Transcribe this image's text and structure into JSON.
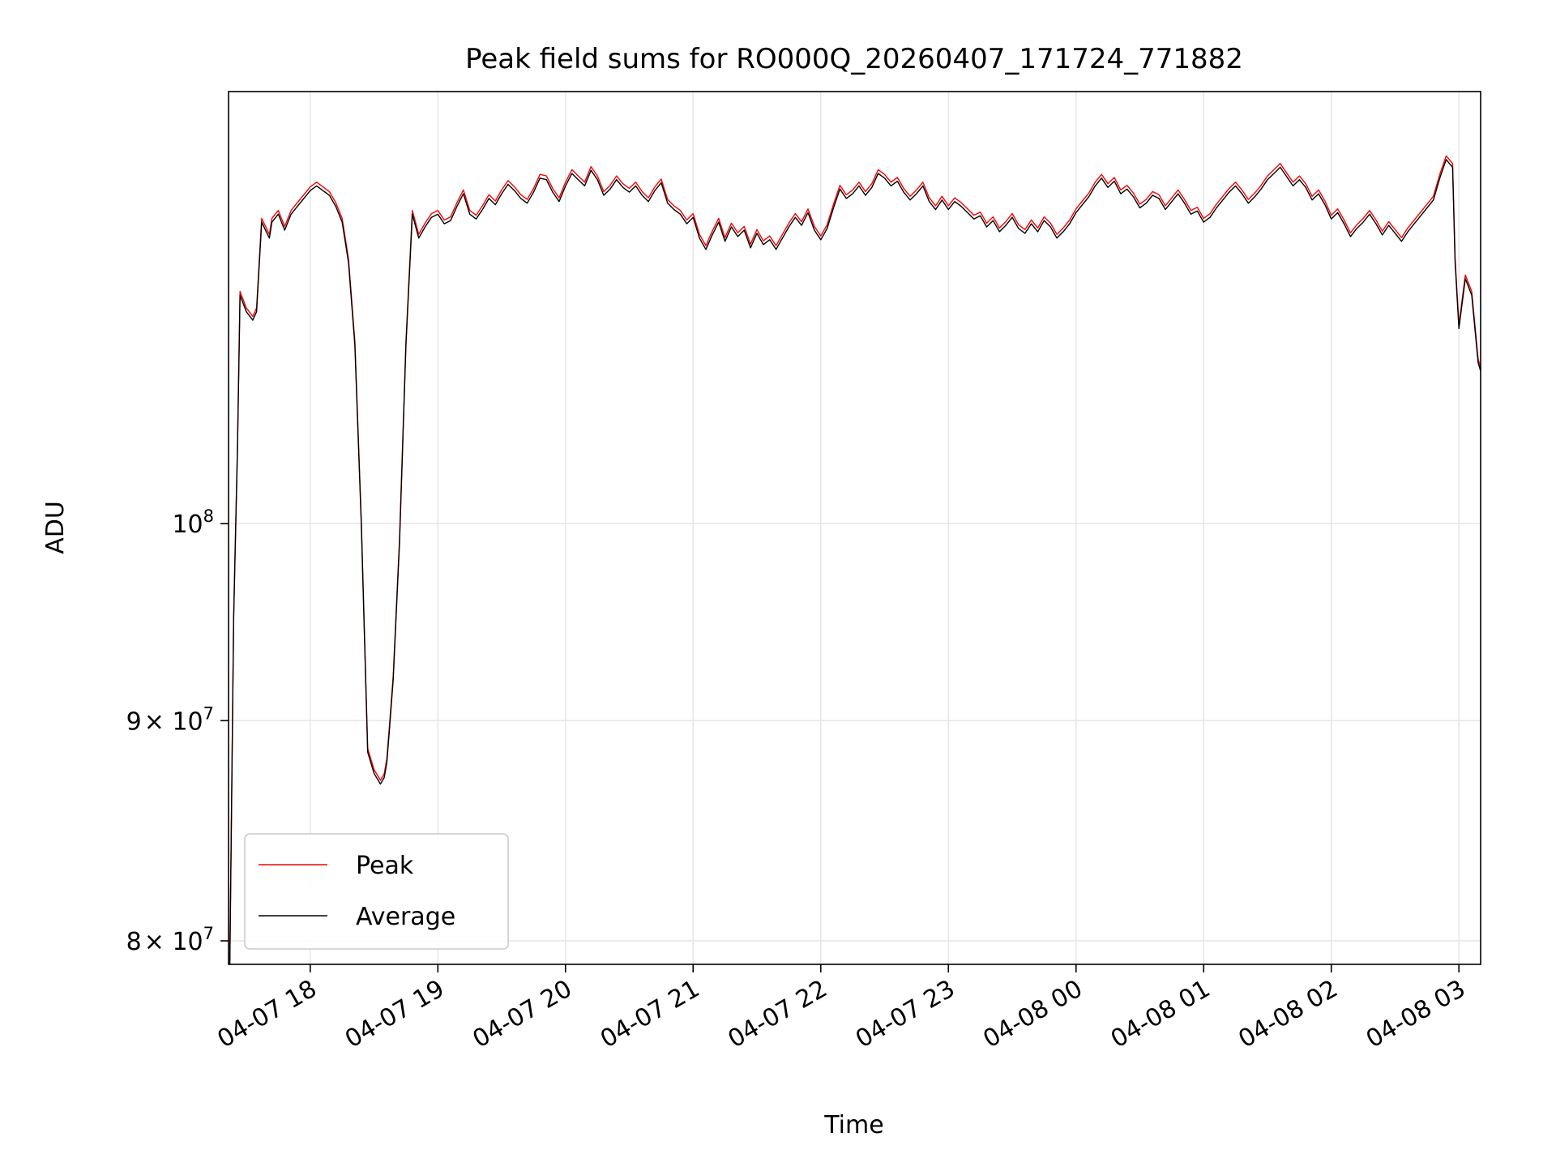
{
  "chart_data": {
    "type": "line",
    "title": "Peak field sums for RO000Q_20260407_171724_771882",
    "xlabel": "Time",
    "ylabel": "ADU",
    "yscale": "log",
    "xlim_hours": [
      17.36,
      27.17
    ],
    "ylim": [
      79000000,
      126000000
    ],
    "grid": true,
    "legend_position": "lower-left",
    "x_ticks": [
      {
        "hour": 18,
        "label": "04-07 18"
      },
      {
        "hour": 19,
        "label": "04-07 19"
      },
      {
        "hour": 20,
        "label": "04-07 20"
      },
      {
        "hour": 21,
        "label": "04-07 21"
      },
      {
        "hour": 22,
        "label": "04-07 22"
      },
      {
        "hour": 23,
        "label": "04-07 23"
      },
      {
        "hour": 24,
        "label": "04-08 00"
      },
      {
        "hour": 25,
        "label": "04-08 01"
      },
      {
        "hour": 26,
        "label": "04-08 02"
      },
      {
        "hour": 27,
        "label": "04-08 03"
      }
    ],
    "y_ticks": [
      {
        "value": 80000000,
        "mantissa": "8",
        "times": "×",
        "base": "10",
        "exp": "7"
      },
      {
        "value": 90000000,
        "mantissa": "9",
        "times": "×",
        "base": "10",
        "exp": "7"
      },
      {
        "value": 100000000,
        "mantissa": "",
        "times": "",
        "base": "10",
        "exp": "8"
      }
    ],
    "series": [
      {
        "name": "Peak",
        "color": "#ff0000",
        "offset_fraction": 0.002
      },
      {
        "name": "Average",
        "color": "#000000",
        "offset_fraction": 0.0
      }
    ],
    "x": [
      17.37,
      17.4,
      17.43,
      17.45,
      17.5,
      17.55,
      17.58,
      17.62,
      17.68,
      17.7,
      17.75,
      17.8,
      17.85,
      17.9,
      17.95,
      18.0,
      18.05,
      18.1,
      18.15,
      18.2,
      18.25,
      18.3,
      18.35,
      18.4,
      18.45,
      18.5,
      18.55,
      18.58,
      18.6,
      18.62,
      18.65,
      18.7,
      18.75,
      18.8,
      18.85,
      18.9,
      18.95,
      19.0,
      19.05,
      19.1,
      19.15,
      19.2,
      19.25,
      19.3,
      19.35,
      19.4,
      19.45,
      19.5,
      19.55,
      19.6,
      19.65,
      19.7,
      19.75,
      19.8,
      19.85,
      19.9,
      19.95,
      20.0,
      20.05,
      20.1,
      20.15,
      20.2,
      20.25,
      20.3,
      20.35,
      20.4,
      20.45,
      20.5,
      20.55,
      20.6,
      20.65,
      20.7,
      20.75,
      20.8,
      20.85,
      20.9,
      20.95,
      21.0,
      21.05,
      21.1,
      21.15,
      21.2,
      21.25,
      21.3,
      21.35,
      21.4,
      21.45,
      21.5,
      21.55,
      21.6,
      21.65,
      21.7,
      21.75,
      21.8,
      21.85,
      21.9,
      21.95,
      22.0,
      22.05,
      22.1,
      22.15,
      22.2,
      22.25,
      22.3,
      22.35,
      22.4,
      22.45,
      22.5,
      22.55,
      22.6,
      22.65,
      22.7,
      22.75,
      22.8,
      22.85,
      22.9,
      22.95,
      23.0,
      23.05,
      23.1,
      23.15,
      23.2,
      23.25,
      23.3,
      23.35,
      23.4,
      23.45,
      23.5,
      23.55,
      23.6,
      23.65,
      23.7,
      23.75,
      23.8,
      23.85,
      23.9,
      23.95,
      24.0,
      24.05,
      24.1,
      24.15,
      24.2,
      24.25,
      24.3,
      24.35,
      24.4,
      24.45,
      24.5,
      24.55,
      24.6,
      24.65,
      24.7,
      24.75,
      24.8,
      24.85,
      24.9,
      24.95,
      25.0,
      25.05,
      25.1,
      25.15,
      25.2,
      25.25,
      25.3,
      25.35,
      25.4,
      25.45,
      25.5,
      25.55,
      25.6,
      25.65,
      25.7,
      25.75,
      25.8,
      25.85,
      25.9,
      25.95,
      26.0,
      26.05,
      26.1,
      26.15,
      26.2,
      26.25,
      26.3,
      26.35,
      26.4,
      26.45,
      26.5,
      26.55,
      26.6,
      26.65,
      26.7,
      26.75,
      26.8,
      26.85,
      26.9,
      26.95,
      26.97,
      27.0,
      27.05,
      27.1,
      27.15,
      27.17
    ],
    "y": [
      79000000,
      95000000,
      104000000,
      113000000,
      112000000,
      111500000,
      112000000,
      117500000,
      116500000,
      117500000,
      118000000,
      117000000,
      118000000,
      118500000,
      119000000,
      119500000,
      119800000,
      119500000,
      119200000,
      118500000,
      117500000,
      115000000,
      110000000,
      100000000,
      88500000,
      87500000,
      87000000,
      87300000,
      88000000,
      89500000,
      92000000,
      99000000,
      110000000,
      118000000,
      116500000,
      117200000,
      117800000,
      118000000,
      117400000,
      117600000,
      118500000,
      119300000,
      118000000,
      117700000,
      118300000,
      119000000,
      118600000,
      119300000,
      119900000,
      119500000,
      119000000,
      118700000,
      119400000,
      120300000,
      120200000,
      119400000,
      118800000,
      119800000,
      120600000,
      120200000,
      119800000,
      120800000,
      120200000,
      119200000,
      119600000,
      120200000,
      119700000,
      119400000,
      119800000,
      119200000,
      118800000,
      119500000,
      120000000,
      118700000,
      118300000,
      118000000,
      117400000,
      117800000,
      116500000,
      115800000,
      116700000,
      117500000,
      116300000,
      117200000,
      116600000,
      117000000,
      115900000,
      116800000,
      116100000,
      116400000,
      115800000,
      116500000,
      117200000,
      117800000,
      117300000,
      118100000,
      117000000,
      116400000,
      117100000,
      118400000,
      119600000,
      119000000,
      119300000,
      119800000,
      119200000,
      119700000,
      120600000,
      120300000,
      119800000,
      120100000,
      119400000,
      118900000,
      119300000,
      119800000,
      118800000,
      118300000,
      118900000,
      118300000,
      118800000,
      118500000,
      118100000,
      117700000,
      117900000,
      117200000,
      117600000,
      116900000,
      117300000,
      117800000,
      117100000,
      116800000,
      117400000,
      116900000,
      117600000,
      117200000,
      116500000,
      116900000,
      117400000,
      118100000,
      118600000,
      119100000,
      119800000,
      120300000,
      119700000,
      120100000,
      119300000,
      119600000,
      119100000,
      118400000,
      118700000,
      119200000,
      119000000,
      118300000,
      118800000,
      119300000,
      118700000,
      118000000,
      118200000,
      117500000,
      117800000,
      118400000,
      118900000,
      119400000,
      119800000,
      119300000,
      118700000,
      119100000,
      119600000,
      120200000,
      120600000,
      121000000,
      120400000,
      119800000,
      120200000,
      119700000,
      118900000,
      119300000,
      118600000,
      117700000,
      118100000,
      117400000,
      116600000,
      117100000,
      117500000,
      118000000,
      117400000,
      116700000,
      117300000,
      116800000,
      116300000,
      116900000,
      117400000,
      117900000,
      118400000,
      118900000,
      120300000,
      121500000,
      121000000,
      115000000,
      111000000,
      114000000,
      113000000,
      109000000,
      108500000
    ]
  }
}
